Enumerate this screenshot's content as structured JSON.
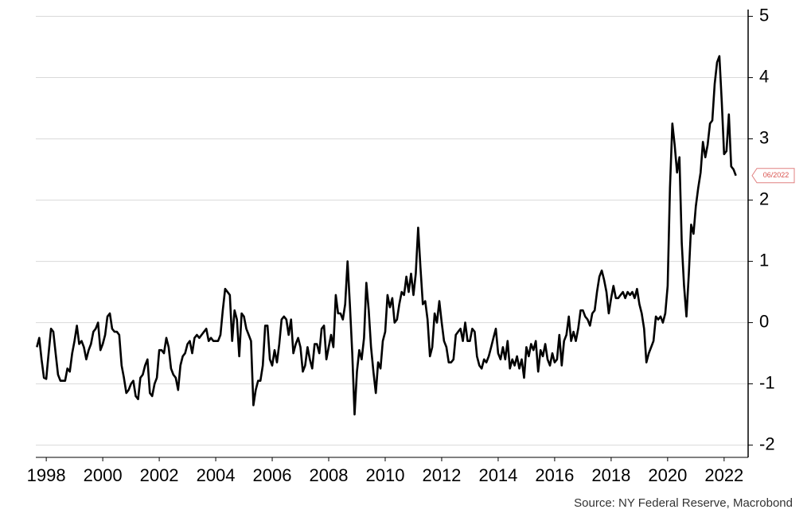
{
  "chart_data": {
    "type": "line",
    "source": "Source: NY Federal Reserve, Macrobond",
    "annotation": "06/2022",
    "x": [
      1997.667,
      1997.75,
      1997.833,
      1997.917,
      1998.0,
      1998.083,
      1998.167,
      1998.25,
      1998.333,
      1998.417,
      1998.5,
      1998.583,
      1998.667,
      1998.75,
      1998.833,
      1998.917,
      1999.0,
      1999.083,
      1999.167,
      1999.25,
      1999.333,
      1999.417,
      1999.5,
      1999.583,
      1999.667,
      1999.75,
      1999.833,
      1999.917,
      2000.0,
      2000.083,
      2000.167,
      2000.25,
      2000.333,
      2000.417,
      2000.5,
      2000.583,
      2000.667,
      2000.75,
      2000.833,
      2000.917,
      2001.0,
      2001.083,
      2001.167,
      2001.25,
      2001.333,
      2001.417,
      2001.5,
      2001.583,
      2001.667,
      2001.75,
      2001.833,
      2001.917,
      2002.0,
      2002.083,
      2002.167,
      2002.25,
      2002.333,
      2002.417,
      2002.5,
      2002.583,
      2002.667,
      2002.75,
      2002.833,
      2002.917,
      2003.0,
      2003.083,
      2003.167,
      2003.25,
      2003.333,
      2003.417,
      2003.5,
      2003.583,
      2003.667,
      2003.75,
      2003.833,
      2003.917,
      2004.0,
      2004.083,
      2004.167,
      2004.25,
      2004.333,
      2004.417,
      2004.5,
      2004.583,
      2004.667,
      2004.75,
      2004.833,
      2004.917,
      2005.0,
      2005.083,
      2005.167,
      2005.25,
      2005.333,
      2005.417,
      2005.5,
      2005.583,
      2005.667,
      2005.75,
      2005.833,
      2005.917,
      2006.0,
      2006.083,
      2006.167,
      2006.25,
      2006.333,
      2006.417,
      2006.5,
      2006.583,
      2006.667,
      2006.75,
      2006.833,
      2006.917,
      2007.0,
      2007.083,
      2007.167,
      2007.25,
      2007.333,
      2007.417,
      2007.5,
      2007.583,
      2007.667,
      2007.75,
      2007.833,
      2007.917,
      2008.0,
      2008.083,
      2008.167,
      2008.25,
      2008.333,
      2008.417,
      2008.5,
      2008.583,
      2008.667,
      2008.75,
      2008.833,
      2008.917,
      2009.0,
      2009.083,
      2009.167,
      2009.25,
      2009.333,
      2009.417,
      2009.5,
      2009.583,
      2009.667,
      2009.75,
      2009.833,
      2009.917,
      2010.0,
      2010.083,
      2010.167,
      2010.25,
      2010.333,
      2010.417,
      2010.5,
      2010.583,
      2010.667,
      2010.75,
      2010.833,
      2010.917,
      2011.0,
      2011.083,
      2011.167,
      2011.25,
      2011.333,
      2011.417,
      2011.5,
      2011.583,
      2011.667,
      2011.75,
      2011.833,
      2011.917,
      2012.0,
      2012.083,
      2012.167,
      2012.25,
      2012.333,
      2012.417,
      2012.5,
      2012.583,
      2012.667,
      2012.75,
      2012.833,
      2012.917,
      2013.0,
      2013.083,
      2013.167,
      2013.25,
      2013.333,
      2013.417,
      2013.5,
      2013.583,
      2013.667,
      2013.75,
      2013.833,
      2013.917,
      2014.0,
      2014.083,
      2014.167,
      2014.25,
      2014.333,
      2014.417,
      2014.5,
      2014.583,
      2014.667,
      2014.75,
      2014.833,
      2014.917,
      2015.0,
      2015.083,
      2015.167,
      2015.25,
      2015.333,
      2015.417,
      2015.5,
      2015.583,
      2015.667,
      2015.75,
      2015.833,
      2015.917,
      2016.0,
      2016.083,
      2016.167,
      2016.25,
      2016.333,
      2016.417,
      2016.5,
      2016.583,
      2016.667,
      2016.75,
      2016.833,
      2016.917,
      2017.0,
      2017.083,
      2017.167,
      2017.25,
      2017.333,
      2017.417,
      2017.5,
      2017.583,
      2017.667,
      2017.75,
      2017.833,
      2017.917,
      2018.0,
      2018.083,
      2018.167,
      2018.25,
      2018.333,
      2018.417,
      2018.5,
      2018.583,
      2018.667,
      2018.75,
      2018.833,
      2018.917,
      2019.0,
      2019.083,
      2019.167,
      2019.25,
      2019.333,
      2019.417,
      2019.5,
      2019.583,
      2019.667,
      2019.75,
      2019.833,
      2019.917,
      2020.0,
      2020.083,
      2020.167,
      2020.25,
      2020.333,
      2020.417,
      2020.5,
      2020.583,
      2020.667,
      2020.75,
      2020.833,
      2020.917,
      2021.0,
      2021.083,
      2021.167,
      2021.25,
      2021.333,
      2021.417,
      2021.5,
      2021.583,
      2021.667,
      2021.75,
      2021.833,
      2021.917,
      2022.0,
      2022.083,
      2022.167,
      2022.25,
      2022.333,
      2022.417
    ],
    "series": [
      {
        "color": "#000000",
        "values": [
          -0.4,
          -0.25,
          -0.6,
          -0.9,
          -0.92,
          -0.5,
          -0.1,
          -0.15,
          -0.5,
          -0.85,
          -0.95,
          -0.95,
          -0.95,
          -0.75,
          -0.8,
          -0.5,
          -0.3,
          -0.05,
          -0.35,
          -0.3,
          -0.4,
          -0.6,
          -0.45,
          -0.35,
          -0.15,
          -0.1,
          0.0,
          -0.45,
          -0.35,
          -0.2,
          0.1,
          0.15,
          -0.1,
          -0.15,
          -0.15,
          -0.2,
          -0.7,
          -0.9,
          -1.15,
          -1.1,
          -1.0,
          -0.95,
          -1.2,
          -1.25,
          -0.9,
          -0.85,
          -0.7,
          -0.6,
          -1.15,
          -1.2,
          -1.0,
          -0.9,
          -0.45,
          -0.45,
          -0.5,
          -0.25,
          -0.4,
          -0.75,
          -0.85,
          -0.9,
          -1.1,
          -0.7,
          -0.55,
          -0.5,
          -0.35,
          -0.3,
          -0.5,
          -0.25,
          -0.2,
          -0.25,
          -0.2,
          -0.15,
          -0.1,
          -0.3,
          -0.25,
          -0.3,
          -0.3,
          -0.3,
          -0.2,
          0.2,
          0.55,
          0.5,
          0.45,
          -0.3,
          0.2,
          0.05,
          -0.55,
          0.15,
          0.1,
          -0.1,
          -0.2,
          -0.3,
          -1.35,
          -1.1,
          -0.95,
          -0.95,
          -0.7,
          -0.05,
          -0.05,
          -0.6,
          -0.7,
          -0.45,
          -0.65,
          -0.35,
          0.05,
          0.1,
          0.05,
          -0.2,
          0.05,
          -0.5,
          -0.35,
          -0.25,
          -0.4,
          -0.8,
          -0.7,
          -0.4,
          -0.6,
          -0.75,
          -0.35,
          -0.35,
          -0.5,
          -0.1,
          -0.05,
          -0.6,
          -0.4,
          -0.2,
          -0.4,
          0.45,
          0.15,
          0.15,
          0.05,
          0.3,
          1.0,
          0.3,
          -0.5,
          -1.5,
          -0.8,
          -0.45,
          -0.6,
          -0.25,
          0.65,
          0.2,
          -0.4,
          -0.8,
          -1.15,
          -0.65,
          -0.75,
          -0.3,
          -0.15,
          0.45,
          0.25,
          0.4,
          0.0,
          0.05,
          0.3,
          0.5,
          0.45,
          0.75,
          0.5,
          0.8,
          0.45,
          0.8,
          1.55,
          0.9,
          0.3,
          0.35,
          0.05,
          -0.55,
          -0.4,
          0.15,
          0.0,
          0.35,
          0.0,
          -0.3,
          -0.4,
          -0.65,
          -0.65,
          -0.6,
          -0.2,
          -0.15,
          -0.1,
          -0.3,
          0.0,
          -0.3,
          -0.3,
          -0.1,
          -0.15,
          -0.55,
          -0.7,
          -0.75,
          -0.6,
          -0.65,
          -0.55,
          -0.4,
          -0.25,
          -0.1,
          -0.5,
          -0.6,
          -0.4,
          -0.6,
          -0.3,
          -0.75,
          -0.6,
          -0.7,
          -0.55,
          -0.75,
          -0.6,
          -0.9,
          -0.4,
          -0.55,
          -0.35,
          -0.45,
          -0.3,
          -0.8,
          -0.45,
          -0.55,
          -0.35,
          -0.6,
          -0.7,
          -0.5,
          -0.65,
          -0.6,
          -0.2,
          -0.7,
          -0.3,
          -0.2,
          0.1,
          -0.3,
          -0.15,
          -0.3,
          -0.1,
          0.2,
          0.2,
          0.1,
          0.05,
          -0.05,
          0.15,
          0.2,
          0.5,
          0.75,
          0.85,
          0.7,
          0.5,
          0.15,
          0.4,
          0.6,
          0.4,
          0.4,
          0.45,
          0.5,
          0.4,
          0.5,
          0.45,
          0.5,
          0.4,
          0.55,
          0.3,
          0.15,
          -0.1,
          -0.65,
          -0.5,
          -0.4,
          -0.3,
          0.1,
          0.05,
          0.1,
          0.0,
          0.15,
          0.6,
          2.2,
          3.25,
          2.9,
          2.45,
          2.7,
          1.3,
          0.6,
          0.1,
          0.8,
          1.6,
          1.45,
          1.9,
          2.2,
          2.45,
          2.95,
          2.7,
          2.9,
          3.25,
          3.3,
          3.9,
          4.25,
          4.35,
          3.6,
          2.75,
          2.8,
          3.4,
          2.55,
          2.5,
          2.4
        ]
      }
    ],
    "xlim": [
      1997.63,
      2022.85
    ],
    "xticks": [
      1998,
      2000,
      2002,
      2004,
      2006,
      2008,
      2010,
      2012,
      2014,
      2016,
      2018,
      2020,
      2022
    ],
    "ylim": [
      -2.2,
      5.15
    ],
    "yticks": [
      -2,
      -1,
      0,
      1,
      2,
      3,
      4,
      5
    ],
    "grid": true
  }
}
